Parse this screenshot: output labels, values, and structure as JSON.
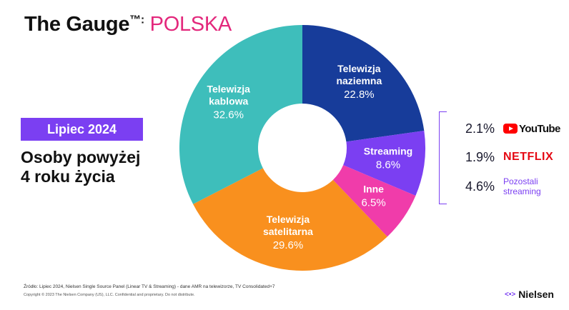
{
  "header": {
    "title_prefix": "The Gauge",
    "title_mark": "™:",
    "country": "POLSKA"
  },
  "period_badge": "Lipiec 2024",
  "audience_line1": "Osoby powyżej",
  "audience_line2": "4 roku życia",
  "colors": {
    "terrestrial": "#173c9a",
    "streaming": "#7b3ff2",
    "other": "#f03caa",
    "satellite": "#f9901e",
    "cable": "#3ebebb",
    "accent": "#e3287c"
  },
  "chart_data": {
    "type": "pie",
    "donut": true,
    "title": "",
    "slices": [
      {
        "label_line1": "Telewizja",
        "label_line2": "naziemna",
        "value": 22.8,
        "value_label": "22.8%",
        "color": "#173c9a"
      },
      {
        "label_line1": "Streaming",
        "label_line2": "",
        "value": 8.6,
        "value_label": "8.6%",
        "color": "#7b3ff2"
      },
      {
        "label_line1": "Inne",
        "label_line2": "",
        "value": 6.5,
        "value_label": "6.5%",
        "color": "#f03caa"
      },
      {
        "label_line1": "Telewizja",
        "label_line2": "satelitarna",
        "value": 29.6,
        "value_label": "29.6%",
        "color": "#f9901e"
      },
      {
        "label_line1": "Telewizja",
        "label_line2": "kablowa",
        "value": 32.6,
        "value_label": "32.6%",
        "color": "#3ebebb"
      }
    ],
    "streaming_breakdown": [
      {
        "brand": "YouTube",
        "value": 2.1,
        "value_label": "2.1%",
        "icon": "youtube-logo-icon"
      },
      {
        "brand": "NETFLIX",
        "value": 1.9,
        "value_label": "1.9%",
        "icon": "netflix-logo-icon"
      },
      {
        "brand": "Pozostali streaming",
        "brand_line1": "Pozostali",
        "brand_line2": "streaming",
        "value": 4.6,
        "value_label": "4.6%"
      }
    ]
  },
  "footer": {
    "source": "Źródło: Lipiec  2024, Nielsen Single Source Panel (Linear TV & Streaming) - dane AMR na telewizorze, TV Consolidated+7",
    "copyright": "Copyright © 2023 The Nielsen Company (US), LLC. Confidential and proprietary. Do not distribute.",
    "logo_text": "Nielsen",
    "logo_icon": "nielsen-logo-icon"
  }
}
